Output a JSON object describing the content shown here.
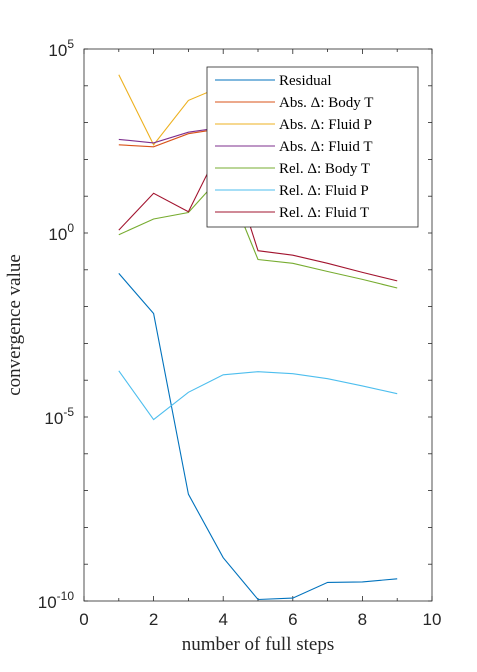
{
  "chart_data": {
    "type": "line",
    "xlabel": "number of full steps",
    "ylabel": "convergence value",
    "xlim": [
      0,
      10
    ],
    "ylim": [
      1e-10,
      100000
    ],
    "yscale": "log",
    "xticks": [
      0,
      2,
      4,
      6,
      8,
      10
    ],
    "yticks": [
      {
        "base": "10",
        "exp": "-10",
        "value": 1e-10
      },
      {
        "base": "10",
        "exp": "-5",
        "value": 1e-05
      },
      {
        "base": "10",
        "exp": "0",
        "value": 1
      },
      {
        "base": "10",
        "exp": "5",
        "value": 100000
      }
    ],
    "grid": false,
    "legend_position": "top-right",
    "x": [
      1,
      2,
      3,
      4,
      5,
      6,
      7,
      8,
      9
    ],
    "series": [
      {
        "name": "Residual",
        "color": "#0072BD",
        "values": [
          0.08,
          0.0065,
          8e-08,
          1.5e-09,
          1.1e-10,
          1.2e-10,
          3.2e-10,
          3.3e-10,
          4e-10
        ]
      },
      {
        "name": "Abs. Δ: Body T",
        "color": "#D95319",
        "values": [
          250,
          220,
          500,
          700,
          2000,
          2000,
          2000,
          2000,
          2000
        ]
      },
      {
        "name": "Abs. Δ: Fluid P",
        "color": "#EDB120",
        "values": [
          20000,
          250,
          4000,
          10000,
          10000,
          10000,
          10000,
          10000,
          10000
        ]
      },
      {
        "name": "Abs. Δ: Fluid T",
        "color": "#7E2F8E",
        "values": [
          350,
          280,
          550,
          750,
          2000,
          2000,
          2000,
          2000,
          2000
        ]
      },
      {
        "name": "Rel. Δ: Body T",
        "color": "#77AC30",
        "values": [
          0.9,
          2.4,
          3.6,
          40,
          0.19,
          0.15,
          0.09,
          0.055,
          0.032
        ]
      },
      {
        "name": "Rel. Δ: Fluid P",
        "color": "#4DBEEE",
        "values": [
          0.00018,
          8.5e-06,
          4.7e-05,
          0.00014,
          0.00017,
          0.00015,
          0.00011,
          7e-05,
          4.3e-05
        ]
      },
      {
        "name": "Rel. Δ: Fluid T",
        "color": "#A2142F",
        "values": [
          1.2,
          12,
          3.8,
          300,
          0.33,
          0.25,
          0.15,
          0.085,
          0.05
        ]
      }
    ]
  }
}
